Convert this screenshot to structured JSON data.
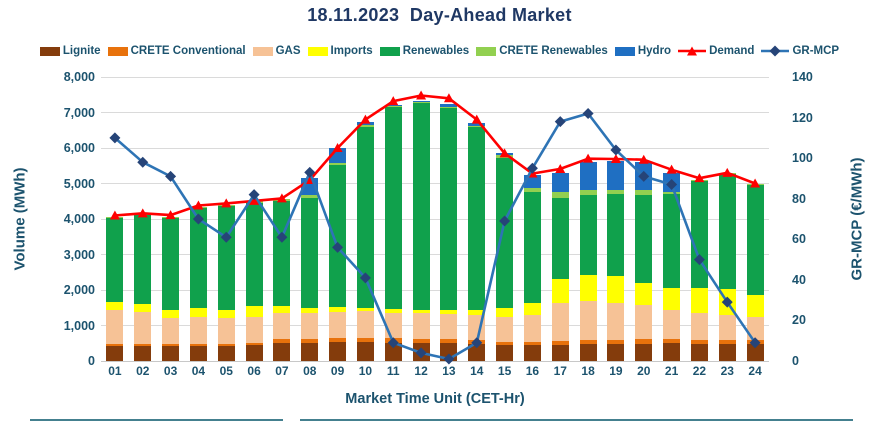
{
  "chart_data": {
    "type": "combo-stacked-bar-line",
    "title": "18.11.2023  Day-Ahead Market",
    "xlabel": "Market Time Unit (CET-Hr)",
    "ylabel_left": "Volume (MWh)",
    "ylabel_right": "GR-MCP (€/MWh)",
    "ylim_left": [
      0,
      8000
    ],
    "ylim_right": [
      0,
      140
    ],
    "ytick_step_left": 1000,
    "ytick_step_right": 20,
    "grid": true,
    "legend_position": "top",
    "categories": [
      "01",
      "02",
      "03",
      "04",
      "05",
      "06",
      "07",
      "08",
      "09",
      "10",
      "11",
      "12",
      "13",
      "14",
      "15",
      "16",
      "17",
      "18",
      "19",
      "20",
      "21",
      "22",
      "23",
      "24"
    ],
    "series": [
      {
        "name": "Lignite",
        "color": "#843C0C",
        "values": [
          430,
          430,
          420,
          430,
          430,
          440,
          505,
          510,
          530,
          530,
          520,
          510,
          510,
          480,
          450,
          450,
          450,
          480,
          480,
          490,
          500,
          480,
          480,
          470
        ]
      },
      {
        "name": "CRETE Conventional",
        "color": "#E8720C",
        "values": [
          60,
          60,
          60,
          60,
          60,
          60,
          115,
          120,
          120,
          120,
          120,
          120,
          120,
          110,
          90,
          90,
          120,
          110,
          120,
          120,
          120,
          110,
          110,
          110
        ]
      },
      {
        "name": "GAS",
        "color": "#F6C296",
        "values": [
          940,
          900,
          730,
          750,
          730,
          750,
          730,
          720,
          730,
          750,
          710,
          710,
          700,
          710,
          700,
          760,
          1060,
          1100,
          1030,
          970,
          820,
          760,
          710,
          660
        ]
      },
      {
        "name": "Imports",
        "color": "#FFFF00",
        "values": [
          220,
          220,
          240,
          240,
          230,
          290,
          200,
          150,
          140,
          100,
          130,
          110,
          120,
          130,
          250,
          330,
          680,
          730,
          760,
          620,
          620,
          710,
          730,
          620
        ]
      },
      {
        "name": "Renewables",
        "color": "#10A14C",
        "values": [
          2370,
          2510,
          2580,
          2830,
          2920,
          2920,
          2970,
          3100,
          3990,
          5090,
          5670,
          5830,
          5670,
          5150,
          4230,
          3130,
          2280,
          2260,
          2320,
          2480,
          2640,
          3010,
          3230,
          3100
        ]
      },
      {
        "name": "CRETE Renewables",
        "color": "#92D050",
        "values": [
          30,
          30,
          30,
          40,
          30,
          40,
          40,
          80,
          60,
          50,
          30,
          30,
          40,
          50,
          70,
          110,
          170,
          140,
          110,
          140,
          60,
          30,
          30,
          30
        ]
      },
      {
        "name": "Hydro",
        "color": "#1F6FC2",
        "values": [
          0,
          0,
          0,
          0,
          0,
          0,
          0,
          470,
          430,
          100,
          30,
          20,
          90,
          90,
          70,
          370,
          530,
          800,
          820,
          780,
          530,
          0,
          0,
          0
        ]
      }
    ],
    "lines": [
      {
        "name": "Demand",
        "axis": "left",
        "color": "#FF0000",
        "marker": "triangle",
        "marker_color": "#FF0000",
        "values": [
          4100,
          4160,
          4110,
          4380,
          4440,
          4510,
          4580,
          5100,
          6000,
          6800,
          7320,
          7480,
          7400,
          6800,
          5850,
          5280,
          5410,
          5700,
          5690,
          5670,
          5390,
          5150,
          5300,
          5000
        ]
      },
      {
        "name": "GR-MCP",
        "axis": "right",
        "color": "#2E74B5",
        "marker": "diamond",
        "marker_color": "#264478",
        "values": [
          110,
          98,
          91,
          70,
          61,
          82,
          61,
          93,
          56,
          41,
          9,
          4,
          1,
          9,
          69,
          95,
          118,
          122,
          104,
          91,
          87,
          50,
          29,
          9
        ]
      }
    ]
  },
  "colors": {
    "title_text": "#1F3864",
    "axis_text": "#1C536E",
    "gridline": "#DADADA",
    "baseline": "#C8C8C8",
    "bottom_rule": "#44808F"
  }
}
